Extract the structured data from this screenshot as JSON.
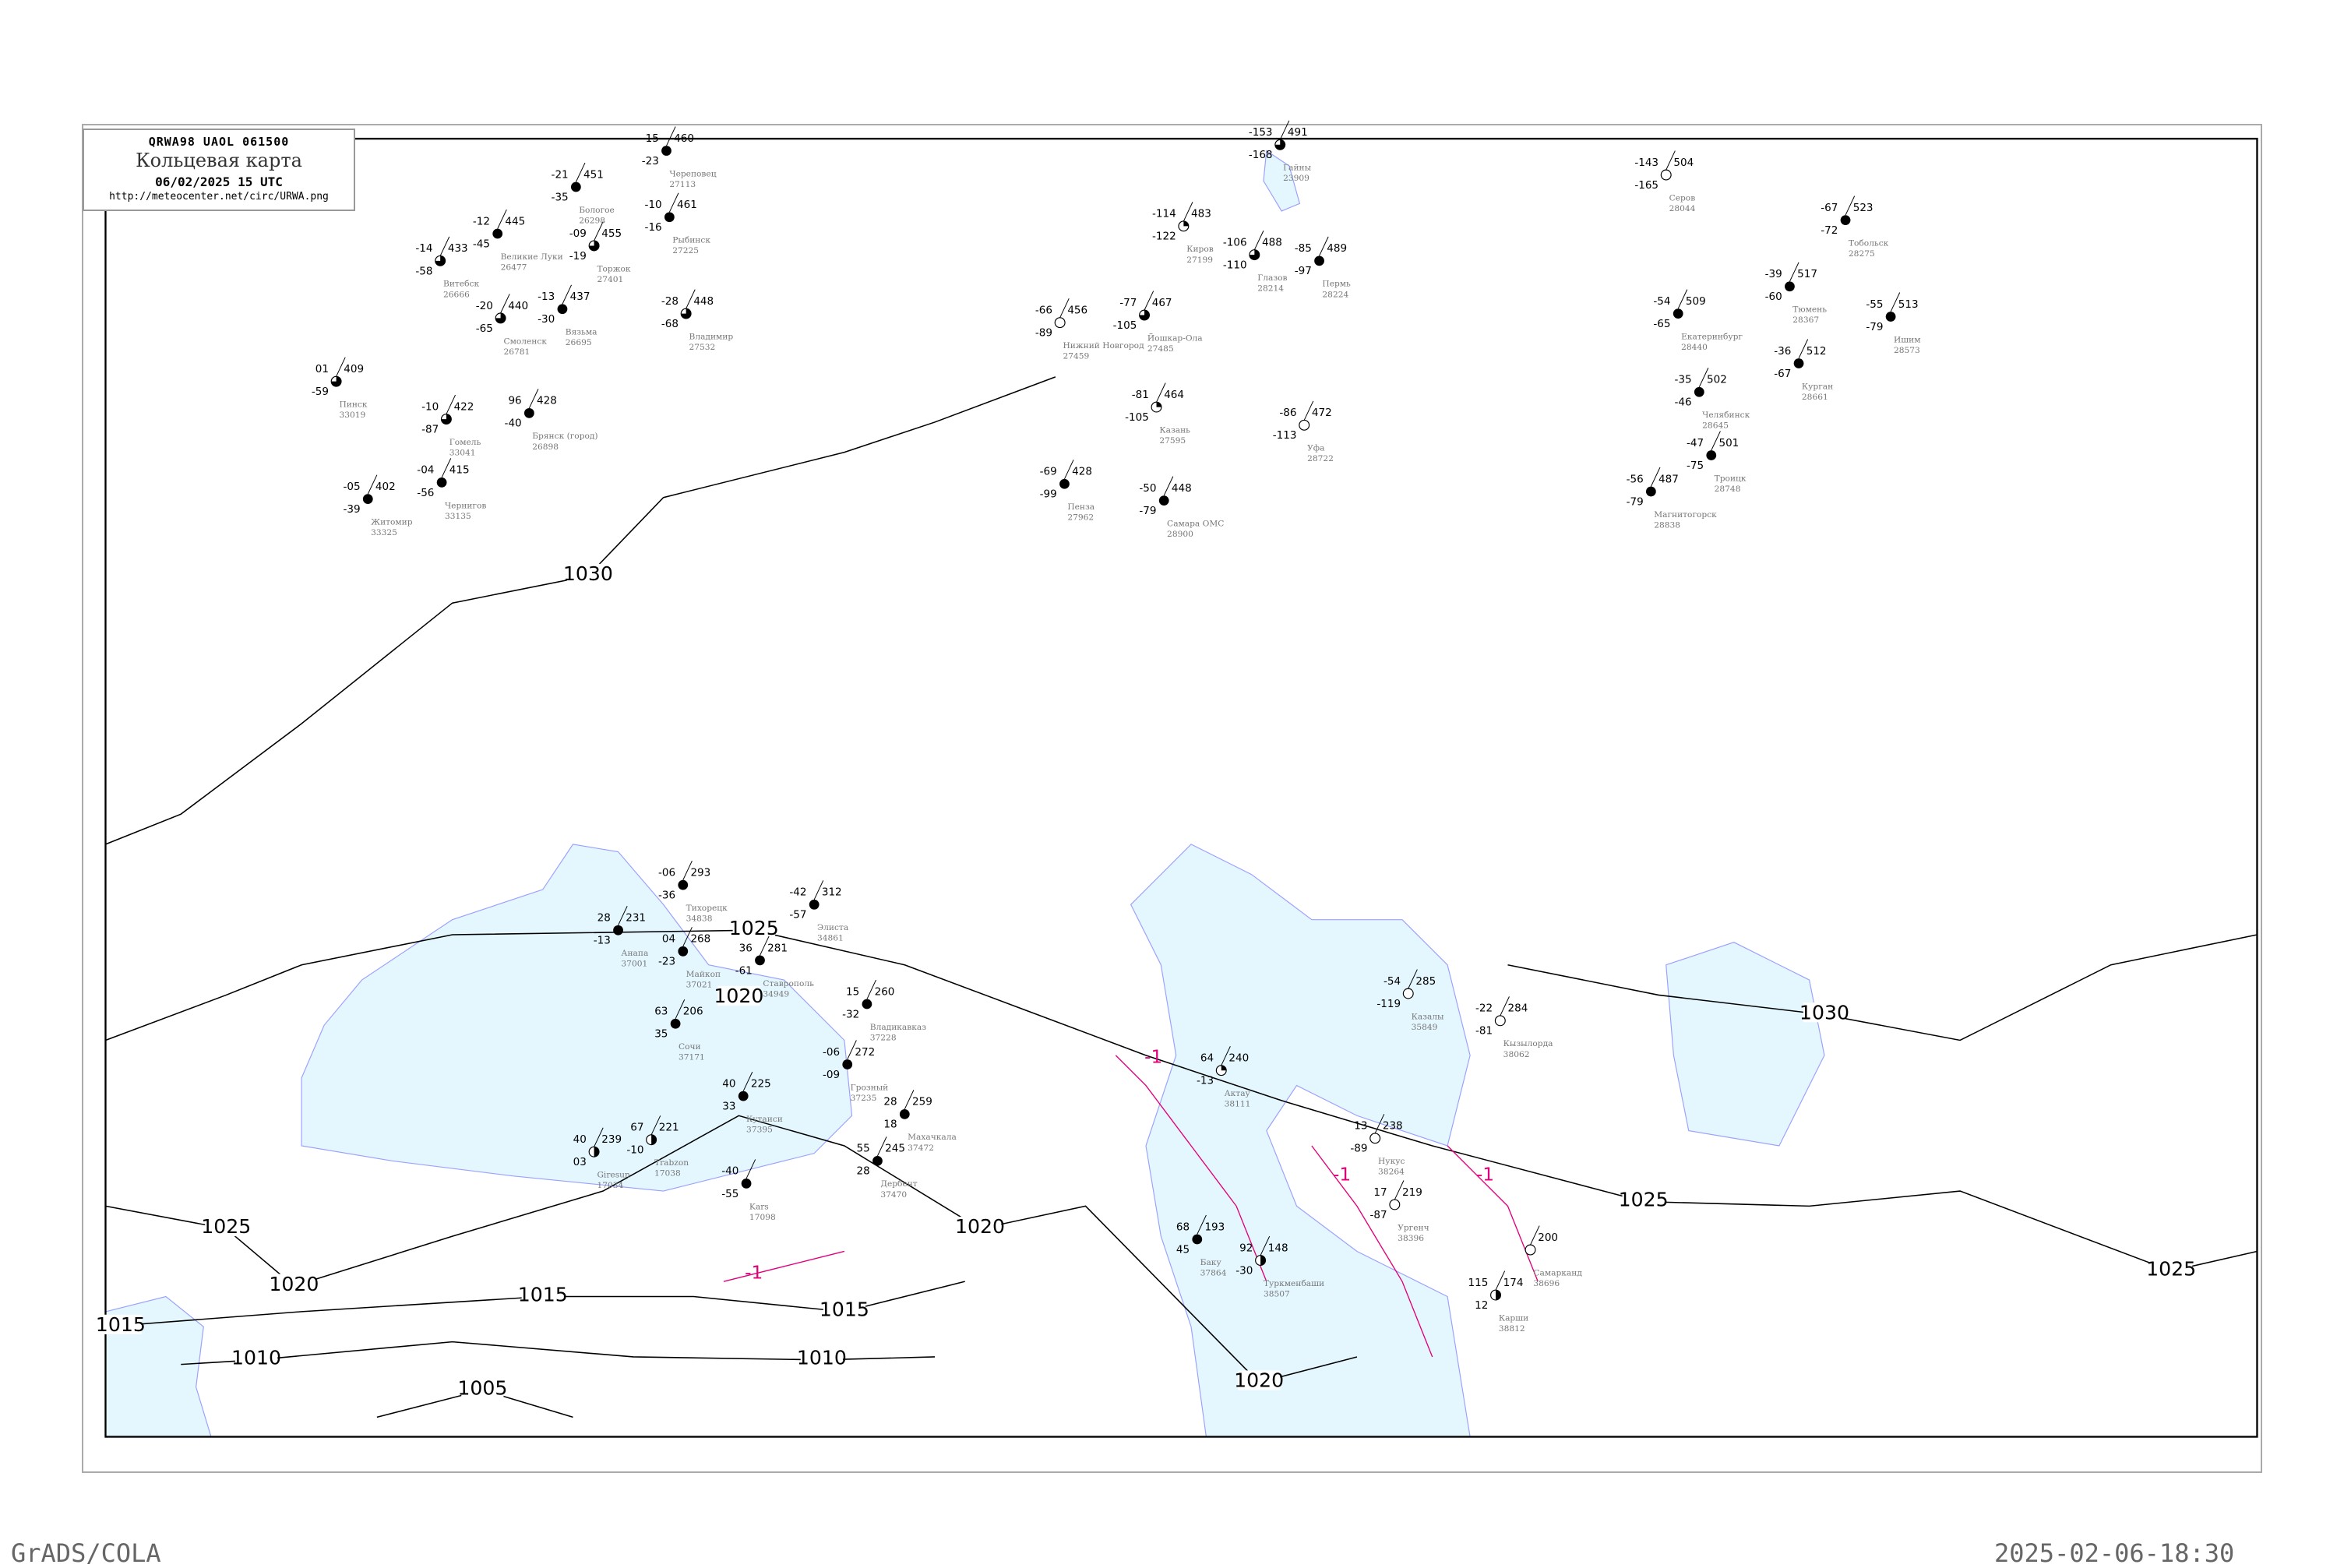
{
  "header": {
    "code": "QRWA98  UAOL  061500",
    "title": "Кольцевая карта",
    "datetime": "06/02/2025 15 UTC",
    "url": "http://meteocenter.net/circ/URWA.png"
  },
  "footer": {
    "left": "GrADS/COLA",
    "right": "2025-02-06-18:30"
  },
  "colors": {
    "water": "#e4f7ff",
    "coast": "#9aa0ff",
    "isobar": "#000000",
    "isotherm": "#e0007a",
    "river": "#1e90ff",
    "station_label": "#777777"
  },
  "isobar_labels": [
    "1030",
    "1030",
    "1025",
    "1025",
    "1025",
    "1025",
    "1020",
    "1020",
    "1020",
    "1020",
    "1015",
    "1015",
    "1015",
    "1010",
    "1010",
    "1005"
  ],
  "isotherm_labels": [
    "-1",
    "-1",
    "-1",
    "-1"
  ],
  "stations": [
    {
      "name": "Смоленск",
      "id": "26781",
      "temp": "-20",
      "dew": "-65",
      "pressure": "440",
      "cloud": "broken"
    },
    {
      "name": "Витебск",
      "id": "26666",
      "temp": "-14",
      "dew": "-58",
      "pressure": "433",
      "cloud": "broken"
    },
    {
      "name": "Брянск (город)",
      "id": "26898",
      "temp": "96",
      "dew": "-40",
      "pressure": "428",
      "cloud": "overcast"
    },
    {
      "name": "Вязьма",
      "id": "26695",
      "temp": "-13",
      "dew": "-30",
      "pressure": "437",
      "cloud": "overcast"
    },
    {
      "name": "Великие Луки",
      "id": "26477",
      "temp": "-12",
      "dew": "-45",
      "pressure": "445",
      "cloud": "overcast"
    },
    {
      "name": "Торжок",
      "id": "27401",
      "temp": "-09",
      "dew": "-19",
      "pressure": "455",
      "cloud": "broken"
    },
    {
      "name": "Бологое",
      "id": "26298",
      "temp": "-21",
      "dew": "-35",
      "pressure": "451",
      "cloud": "overcast"
    },
    {
      "name": "Череповец",
      "id": "27113",
      "temp": "-15",
      "dew": "-23",
      "pressure": "460",
      "cloud": "overcast"
    },
    {
      "name": "Рыбинск",
      "id": "27225",
      "temp": "-10",
      "dew": "-16",
      "pressure": "461",
      "cloud": "overcast"
    },
    {
      "name": "Владимир",
      "id": "27532",
      "temp": "-28",
      "dew": "-68",
      "pressure": "448",
      "cloud": "broken"
    },
    {
      "name": "Гомель",
      "id": "33041",
      "temp": "-10",
      "dew": "-87",
      "pressure": "422",
      "cloud": "broken"
    },
    {
      "name": "Пинск",
      "id": "33019",
      "temp": "01",
      "dew": "-59",
      "pressure": "409",
      "cloud": "broken"
    },
    {
      "name": "Житомир",
      "id": "33325",
      "temp": "-05",
      "dew": "-39",
      "pressure": "402",
      "cloud": "overcast"
    },
    {
      "name": "Чернигов",
      "id": "33135",
      "temp": "-04",
      "dew": "-56",
      "pressure": "415",
      "cloud": "overcast"
    },
    {
      "name": "Киров",
      "id": "27199",
      "temp": "-114",
      "dew": "-122",
      "pressure": "483",
      "cloud": "partly"
    },
    {
      "name": "Нижний Новгород",
      "id": "27459",
      "temp": "-66",
      "dew": "-89",
      "pressure": "456",
      "cloud": "clear"
    },
    {
      "name": "Казань",
      "id": "27595",
      "temp": "-81",
      "dew": "-105",
      "pressure": "464",
      "cloud": "partly"
    },
    {
      "name": "Пермь",
      "id": "28224",
      "temp": "-85",
      "dew": "-97",
      "pressure": "489",
      "cloud": "overcast"
    },
    {
      "name": "Глазов",
      "id": "28214",
      "temp": "-106",
      "dew": "-110",
      "pressure": "488",
      "cloud": "broken"
    },
    {
      "name": "Пенза",
      "id": "27962",
      "temp": "-69",
      "dew": "-99",
      "pressure": "428",
      "cloud": "overcast"
    },
    {
      "name": "Уфа",
      "id": "28722",
      "temp": "-86",
      "dew": "-113",
      "pressure": "472",
      "cloud": "clear"
    },
    {
      "name": "Самара ОМС",
      "id": "28900",
      "temp": "-50",
      "dew": "-79",
      "pressure": "448",
      "cloud": "overcast"
    },
    {
      "name": "Йошкар-Ола",
      "id": "27485",
      "temp": "-77",
      "dew": "-105",
      "pressure": "467",
      "cloud": "broken"
    },
    {
      "name": "Гайны",
      "id": "23909",
      "temp": "-153",
      "dew": "-168",
      "pressure": "491",
      "cloud": "broken"
    },
    {
      "name": "Екатеринбург",
      "id": "28440",
      "temp": "-54",
      "dew": "-65",
      "pressure": "509",
      "cloud": "overcast"
    },
    {
      "name": "Тюмень",
      "id": "28367",
      "temp": "-39",
      "dew": "-60",
      "pressure": "517",
      "cloud": "overcast"
    },
    {
      "name": "Тобольск",
      "id": "28275",
      "temp": "-67",
      "dew": "-72",
      "pressure": "523",
      "cloud": "overcast"
    },
    {
      "name": "Челябинск",
      "id": "28645",
      "temp": "-35",
      "dew": "-46",
      "pressure": "502",
      "cloud": "overcast"
    },
    {
      "name": "Курган",
      "id": "28661",
      "temp": "-36",
      "dew": "-67",
      "pressure": "512",
      "cloud": "overcast"
    },
    {
      "name": "Ишим",
      "id": "28573",
      "temp": "-55",
      "dew": "-79",
      "pressure": "513",
      "cloud": "overcast"
    },
    {
      "name": "Серов",
      "id": "28044",
      "temp": "-143",
      "dew": "-165",
      "pressure": "504",
      "cloud": "clear"
    },
    {
      "name": "Магнитогорск",
      "id": "28838",
      "temp": "-56",
      "dew": "-79",
      "pressure": "487",
      "cloud": "overcast"
    },
    {
      "name": "Троицк",
      "id": "28748",
      "temp": "-47",
      "dew": "-75",
      "pressure": "501",
      "cloud": "overcast"
    },
    {
      "name": "Анапа",
      "id": "37001",
      "temp": "28",
      "dew": "-13",
      "pressure": "231",
      "cloud": "overcast"
    },
    {
      "name": "Сочи",
      "id": "37171",
      "temp": "63",
      "dew": "35",
      "pressure": "206",
      "cloud": "overcast"
    },
    {
      "name": "Майкоп",
      "id": "37021",
      "temp": "04",
      "dew": "-23",
      "pressure": "268",
      "cloud": "overcast"
    },
    {
      "name": "Тихорецк",
      "id": "34838",
      "temp": "-06",
      "dew": "-36",
      "pressure": "293",
      "cloud": "overcast"
    },
    {
      "name": "Элиста",
      "id": "34861",
      "temp": "-42",
      "dew": "-57",
      "pressure": "312",
      "cloud": "overcast"
    },
    {
      "name": "Грозный",
      "id": "37235",
      "temp": "-06",
      "dew": "-09",
      "pressure": "272",
      "cloud": "overcast"
    },
    {
      "name": "Махачкала",
      "id": "37472",
      "temp": "28",
      "dew": "18",
      "pressure": "259",
      "cloud": "overcast"
    },
    {
      "name": "Дербент",
      "id": "37470",
      "temp": "55",
      "dew": "28",
      "pressure": "245",
      "cloud": "overcast"
    },
    {
      "name": "Кутаиси",
      "id": "37395",
      "temp": "40",
      "dew": "33",
      "pressure": "225",
      "cloud": "overcast"
    },
    {
      "name": "Trabzon",
      "id": "17038",
      "temp": "67",
      "dew": "-10",
      "pressure": "221",
      "cloud": "half"
    },
    {
      "name": "Giresun",
      "id": "17034",
      "temp": "40",
      "dew": "03",
      "pressure": "239",
      "cloud": "half"
    },
    {
      "name": "Kars",
      "id": "17098",
      "temp": "-40",
      "dew": "-55",
      "pressure": "",
      "cloud": "overcast"
    },
    {
      "name": "Ставрополь",
      "id": "34949",
      "temp": "36",
      "dew": "-61",
      "pressure": "281",
      "cloud": "overcast"
    },
    {
      "name": "Владикавказ",
      "id": "37228",
      "temp": "15",
      "dew": "-32",
      "pressure": "260",
      "cloud": "overcast"
    },
    {
      "name": "Актау",
      "id": "38111",
      "temp": "64",
      "dew": "-13",
      "pressure": "240",
      "cloud": "partly"
    },
    {
      "name": "Баку",
      "id": "37864",
      "temp": "68",
      "dew": "45",
      "pressure": "193",
      "cloud": "overcast"
    },
    {
      "name": "Туркменбаши",
      "id": "38507",
      "temp": "92",
      "dew": "-30",
      "pressure": "148",
      "cloud": "half"
    },
    {
      "name": "Нукус",
      "id": "38264",
      "temp": "13",
      "dew": "-89",
      "pressure": "238",
      "cloud": "clear"
    },
    {
      "name": "Казалы",
      "id": "35849",
      "temp": "-54",
      "dew": "-119",
      "pressure": "285",
      "cloud": "clear"
    },
    {
      "name": "Кызылорда",
      "id": "38062",
      "temp": "-22",
      "dew": "-81",
      "pressure": "284",
      "cloud": "clear"
    },
    {
      "name": "Ургенч",
      "id": "38396",
      "temp": "17",
      "dew": "-87",
      "pressure": "219",
      "cloud": "clear"
    },
    {
      "name": "Карши",
      "id": "38812",
      "temp": "115",
      "dew": "12",
      "pressure": "174",
      "cloud": "half"
    },
    {
      "name": "Самарканд",
      "id": "38696",
      "temp": "",
      "dew": "",
      "pressure": "200",
      "cloud": "clear"
    }
  ]
}
